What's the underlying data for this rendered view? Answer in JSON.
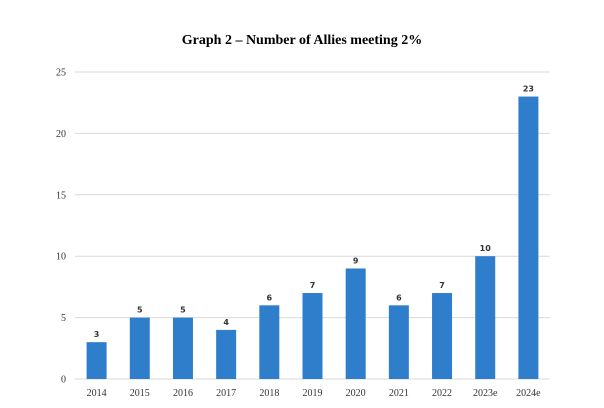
{
  "chart_data": {
    "type": "bar",
    "title": "Graph 2 – Number of Allies meeting 2%",
    "xlabel": "",
    "ylabel": "",
    "categories": [
      "2014",
      "2015",
      "2016",
      "2017",
      "2018",
      "2019",
      "2020",
      "2021",
      "2022",
      "2023e",
      "2024e"
    ],
    "values": [
      3,
      5,
      5,
      4,
      6,
      7,
      9,
      6,
      7,
      10,
      23
    ],
    "ylim": [
      0,
      25
    ],
    "yticks": [
      0,
      5,
      10,
      15,
      20,
      25
    ],
    "grid": true,
    "legend": "none",
    "bar_color": "#2f7ecb"
  }
}
